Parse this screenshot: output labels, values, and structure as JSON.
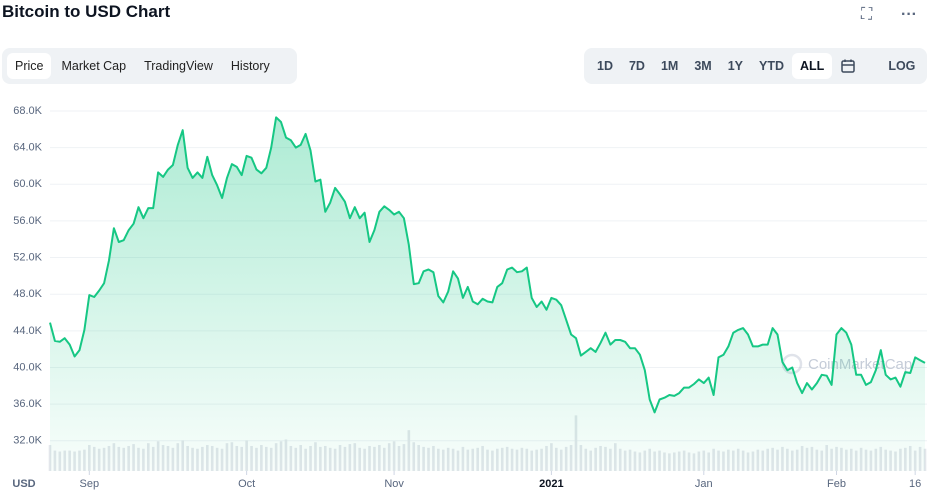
{
  "header": {
    "title": "Bitcoin to USD Chart"
  },
  "tabs": [
    {
      "label": "Price",
      "active": true
    },
    {
      "label": "Market Cap"
    },
    {
      "label": "TradingView"
    },
    {
      "label": "History"
    }
  ],
  "ranges": [
    {
      "label": "1D"
    },
    {
      "label": "7D"
    },
    {
      "label": "1M"
    },
    {
      "label": "3M"
    },
    {
      "label": "1Y"
    },
    {
      "label": "YTD"
    },
    {
      "label": "ALL",
      "active": true
    }
  ],
  "log_button": "LOG",
  "chart_data": {
    "type": "area",
    "watermark": "CoinMarketCap",
    "currency_label": "USD",
    "color": "#16c784",
    "volume_color": "#e3e6eb",
    "grid": true,
    "ylim": [
      28700,
      69200
    ],
    "yticks": [
      {
        "value": 32000,
        "label": "32.0K"
      },
      {
        "value": 36000,
        "label": "36.0K"
      },
      {
        "value": 40000,
        "label": "40.0K"
      },
      {
        "value": 44000,
        "label": "44.0K"
      },
      {
        "value": 48000,
        "label": "48.0K"
      },
      {
        "value": 52000,
        "label": "52.0K"
      },
      {
        "value": 56000,
        "label": "56.0K"
      },
      {
        "value": 60000,
        "label": "60.0K"
      },
      {
        "value": 64000,
        "label": "64.0K"
      },
      {
        "value": 68000,
        "label": "68.0K"
      }
    ],
    "y2lim": [
      0,
      400
    ],
    "categories": [
      null,
      null,
      null,
      null,
      null,
      null,
      null,
      null,
      "Sep",
      null,
      null,
      null,
      null,
      null,
      null,
      null,
      null,
      null,
      null,
      null,
      null,
      null,
      null,
      null,
      null,
      null,
      null,
      null,
      null,
      null,
      null,
      null,
      null,
      null,
      null,
      null,
      null,
      null,
      null,
      null,
      "Oct",
      null,
      null,
      null,
      null,
      null,
      null,
      null,
      null,
      null,
      null,
      null,
      null,
      null,
      null,
      null,
      null,
      null,
      null,
      null,
      null,
      null,
      null,
      null,
      null,
      null,
      null,
      null,
      null,
      null,
      "Nov",
      null,
      null,
      null,
      null,
      null,
      null,
      null,
      null,
      null,
      null,
      null,
      null,
      null,
      null,
      null,
      null,
      null,
      null,
      null,
      null,
      null,
      null,
      null,
      null,
      null,
      null,
      null,
      null,
      null,
      null,
      null,
      "2021",
      null,
      null,
      null,
      null,
      null,
      null,
      null,
      null,
      null,
      null,
      null,
      null,
      null,
      null,
      null,
      null,
      null,
      null,
      null,
      null,
      null,
      null,
      null,
      null,
      null,
      null,
      null,
      null,
      null,
      null,
      "Jan",
      null,
      null,
      null,
      null,
      null,
      null,
      null,
      null,
      null,
      null,
      null,
      null,
      null,
      null,
      null,
      null,
      null,
      null,
      null,
      null,
      null,
      null,
      null,
      null,
      null,
      null,
      "Feb",
      null,
      null,
      null,
      null,
      null,
      null,
      null,
      null,
      null,
      null,
      null,
      null,
      null,
      null,
      null,
      "16",
      null,
      null
    ],
    "values": [
      44900,
      42900,
      42800,
      43200,
      42500,
      41200,
      41900,
      44100,
      47900,
      47700,
      48400,
      49200,
      51700,
      55200,
      53700,
      53900,
      55000,
      55700,
      57500,
      56300,
      57400,
      57400,
      61300,
      60800,
      61600,
      62100,
      64300,
      65900,
      61800,
      60700,
      61300,
      60700,
      63000,
      61000,
      59900,
      58500,
      60700,
      62200,
      61900,
      61000,
      63100,
      62900,
      61600,
      61200,
      61800,
      64000,
      67300,
      66800,
      65100,
      64800,
      64000,
      64300,
      65500,
      63700,
      60300,
      60500,
      57000,
      58000,
      59600,
      58900,
      58100,
      56300,
      57500,
      56300,
      56900,
      53700,
      55000,
      57000,
      57600,
      57200,
      56700,
      57000,
      56300,
      53400,
      49100,
      49200,
      50500,
      50700,
      50400,
      47800,
      47100,
      48300,
      50500,
      49700,
      47600,
      48800,
      47200,
      46900,
      47500,
      47200,
      47100,
      48800,
      49200,
      50700,
      50900,
      50400,
      50500,
      50900,
      47600,
      46600,
      47200,
      46300,
      47600,
      47400,
      46800,
      45200,
      43600,
      43200,
      41300,
      41700,
      42100,
      41700,
      42700,
      43800,
      42500,
      43000,
      43000,
      42800,
      42100,
      42100,
      41400,
      39700,
      36500,
      35100,
      36500,
      36700,
      37000,
      36900,
      37200,
      37800,
      37800,
      38200,
      38700,
      38300,
      38900,
      37000,
      41100,
      41400,
      42300,
      43800,
      44100,
      44300,
      43600,
      42300,
      42300,
      42500,
      42500,
      44300,
      43600,
      40600,
      39700,
      40000,
      38300,
      37200,
      38300,
      37600,
      38300,
      39200,
      39100,
      38100,
      43600,
      44300,
      43800,
      42500,
      39200,
      39200,
      38100,
      38400,
      39700,
      41900,
      39200,
      38700,
      38900,
      37900,
      39500,
      39400,
      41100,
      40800,
      40500
    ],
    "volumes": [
      28,
      22,
      21,
      22,
      22,
      21,
      22,
      23,
      28,
      26,
      24,
      25,
      27,
      30,
      26,
      25,
      27,
      29,
      25,
      24,
      30,
      26,
      32,
      28,
      27,
      25,
      30,
      33,
      27,
      25,
      24,
      26,
      28,
      27,
      25,
      24,
      30,
      31,
      27,
      26,
      33,
      27,
      25,
      28,
      26,
      25,
      30,
      32,
      34,
      27,
      25,
      28,
      24,
      27,
      31,
      26,
      27,
      25,
      24,
      28,
      26,
      29,
      30,
      25,
      24,
      27,
      26,
      28,
      25,
      30,
      32,
      27,
      29,
      44,
      31,
      28,
      26,
      25,
      27,
      24,
      23,
      25,
      24,
      22,
      26,
      23,
      24,
      25,
      27,
      23,
      22,
      24,
      25,
      26,
      24,
      23,
      25,
      24,
      22,
      23,
      24,
      27,
      30,
      25,
      23,
      26,
      28,
      60,
      28,
      24,
      22,
      25,
      27,
      26,
      24,
      30,
      24,
      22,
      23,
      21,
      20,
      22,
      24,
      21,
      22,
      20,
      19,
      20,
      21,
      22,
      20,
      19,
      21,
      22,
      20,
      24,
      22,
      21,
      23,
      22,
      24,
      22,
      20,
      21,
      23,
      22,
      24,
      25,
      23,
      26,
      24,
      22,
      23,
      27,
      25,
      26,
      23,
      22,
      28,
      24,
      26,
      25,
      23,
      24,
      22,
      25,
      23,
      22,
      24,
      26,
      23,
      22,
      21,
      24,
      25,
      27,
      22,
      26,
      24
    ]
  }
}
